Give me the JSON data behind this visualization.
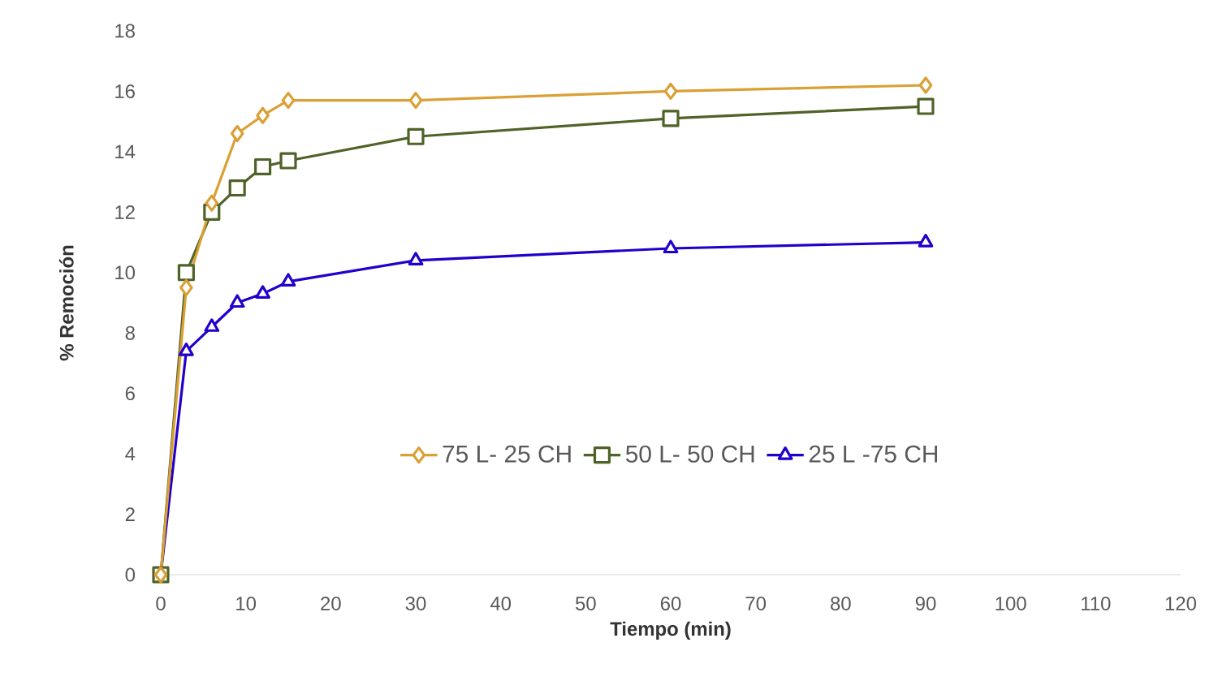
{
  "chart_data": {
    "type": "line",
    "xlabel": "Tiempo (min)",
    "ylabel": "% Remoción",
    "xlim": [
      0,
      120
    ],
    "xticks": [
      0,
      10,
      20,
      30,
      40,
      50,
      60,
      70,
      80,
      90,
      100,
      110,
      120
    ],
    "ylim": [
      0,
      18
    ],
    "yticks": [
      0,
      2,
      4,
      6,
      8,
      10,
      12,
      14,
      16,
      18
    ],
    "x": [
      0,
      3,
      6,
      9,
      12,
      15,
      30,
      60,
      90
    ],
    "legend": "center",
    "grid": false,
    "series": [
      {
        "name": "75 L- 25 CH",
        "color": "#daa035",
        "marker": "diamond",
        "values": [
          0,
          9.5,
          12.3,
          14.6,
          15.2,
          15.7,
          15.7,
          16.0,
          16.2
        ]
      },
      {
        "name": "50 L- 50 CH",
        "color": "#4f6228",
        "marker": "square",
        "values": [
          0,
          10.0,
          12.0,
          12.8,
          13.5,
          13.7,
          14.5,
          15.1,
          15.5
        ]
      },
      {
        "name": "25 L -75 CH",
        "color": "#2200cc",
        "marker": "triangle",
        "values": [
          0,
          7.4,
          8.2,
          9.0,
          9.3,
          9.7,
          10.4,
          10.8,
          11.0
        ]
      }
    ]
  }
}
